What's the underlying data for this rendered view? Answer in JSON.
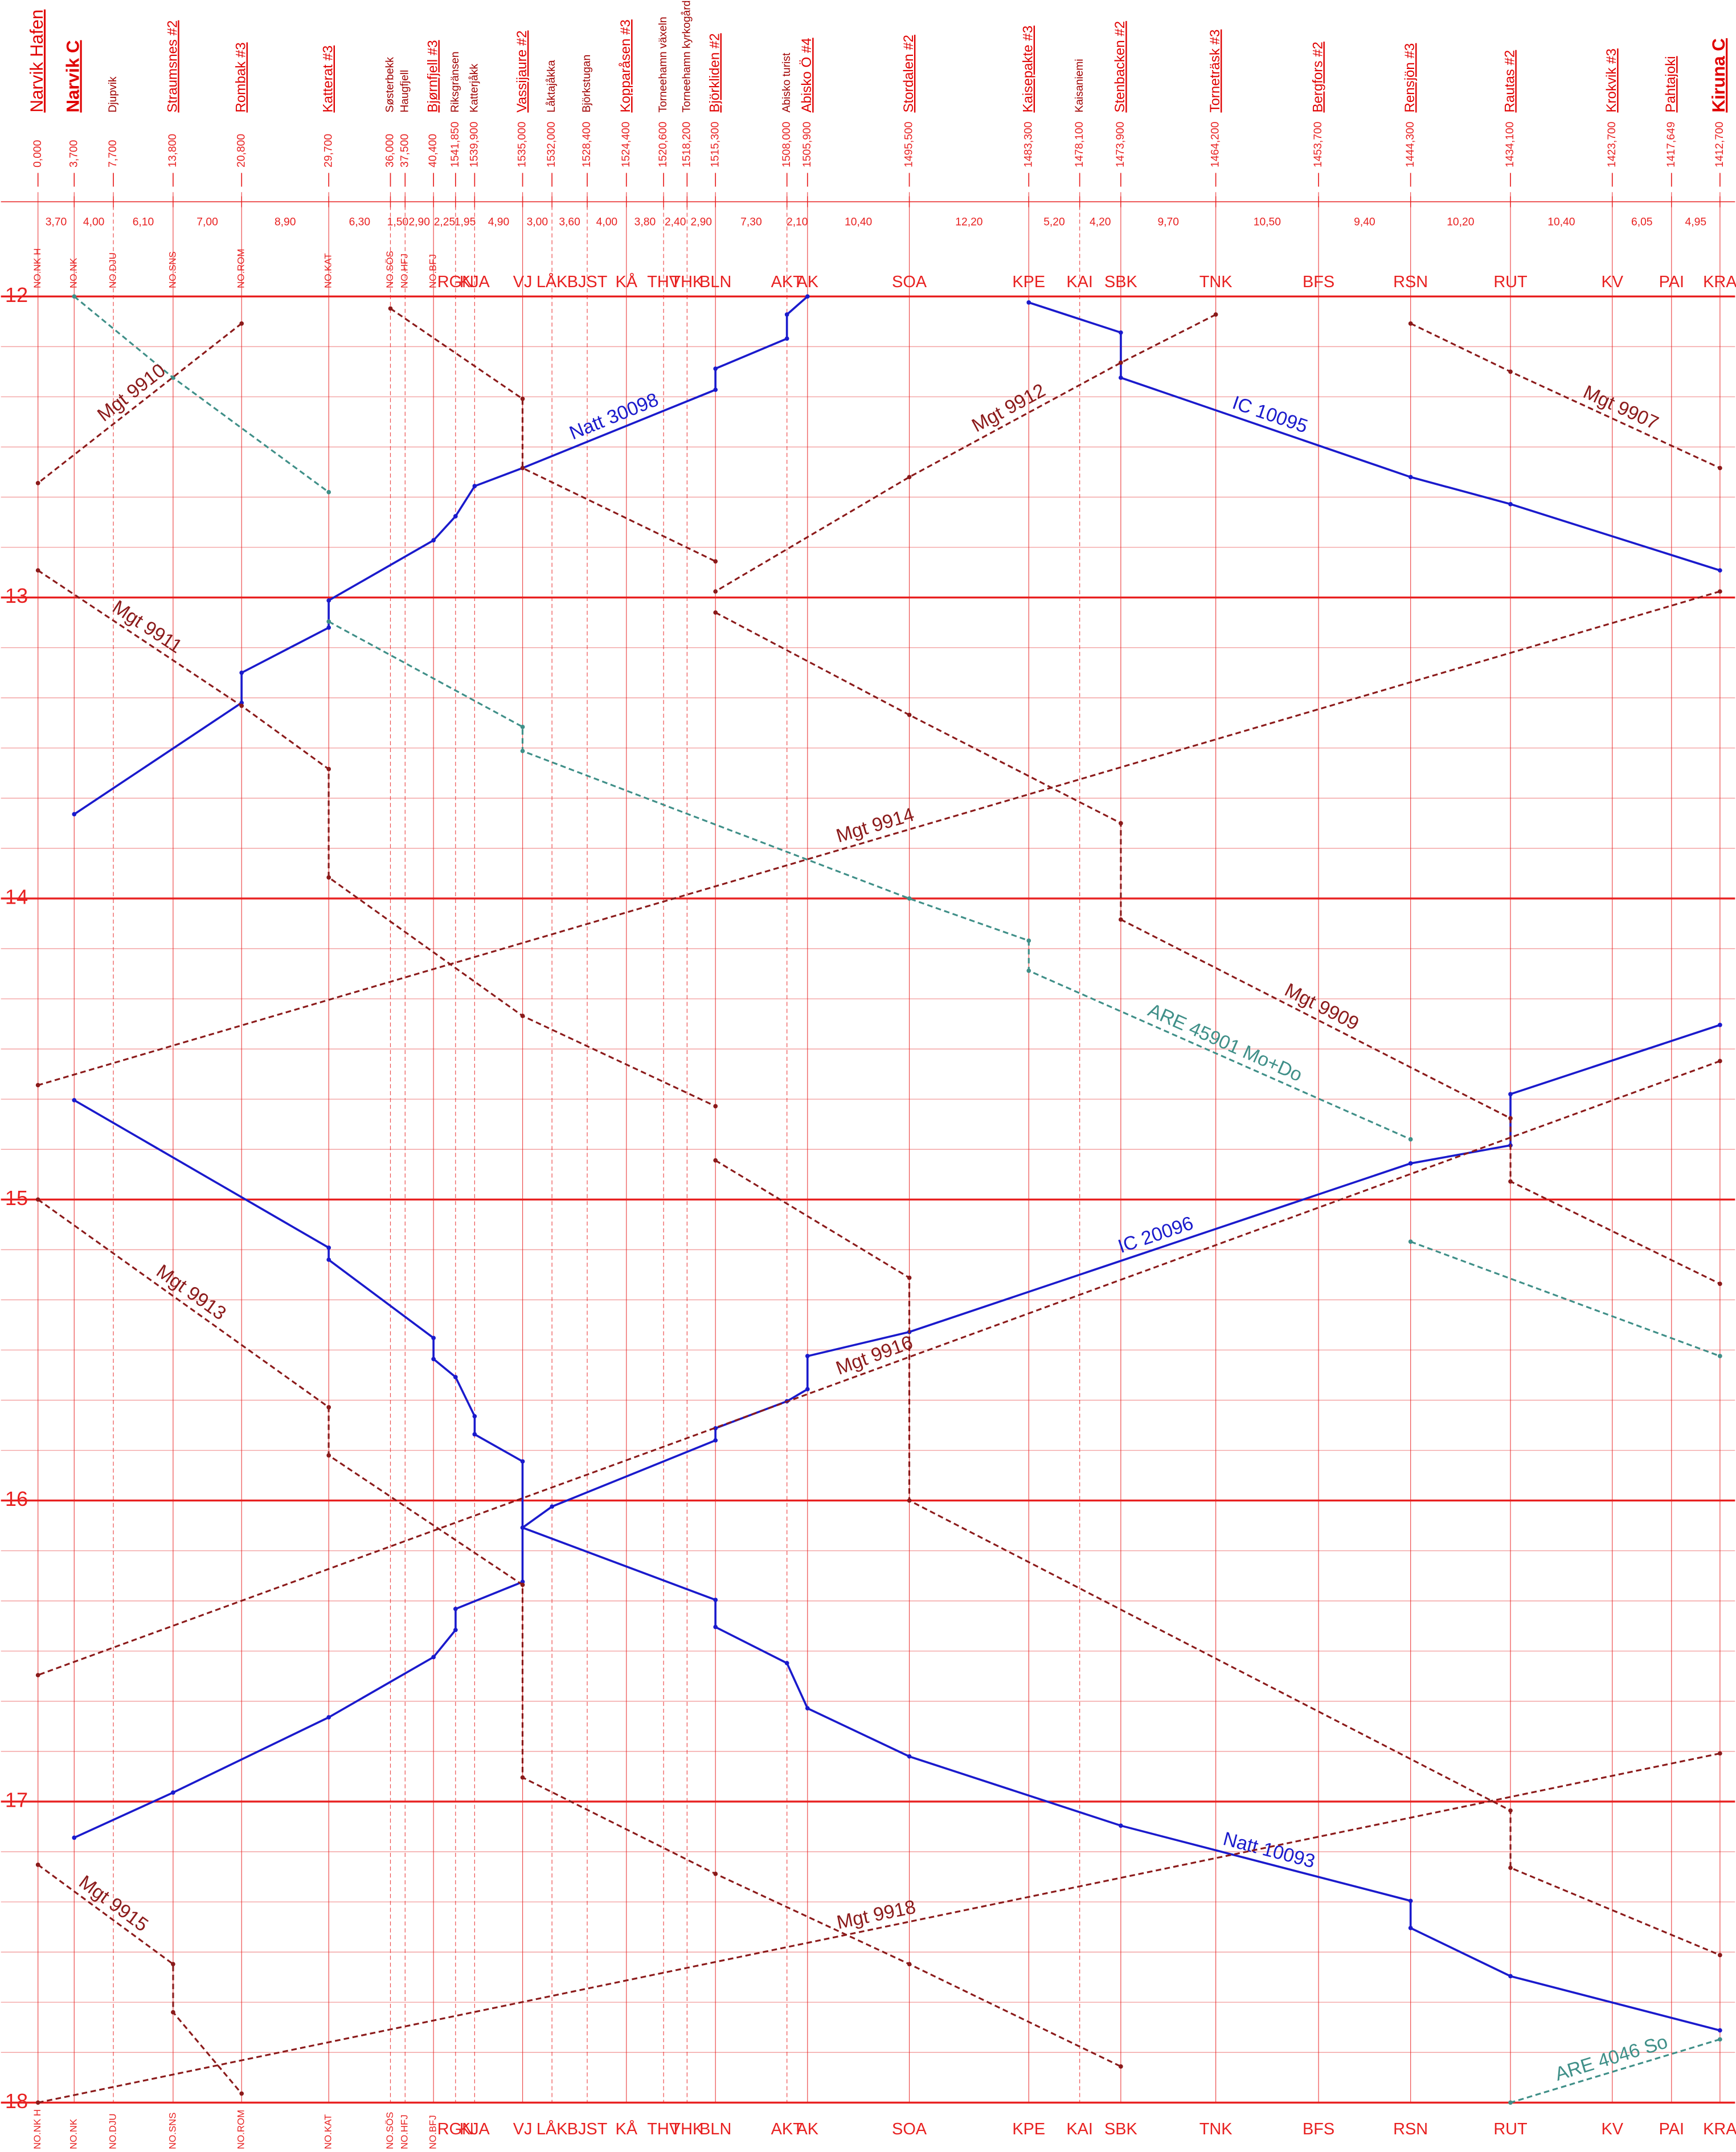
{
  "chart_data": {
    "type": "train-graph",
    "ylim": [
      12,
      18
    ],
    "yticks": [
      12,
      13,
      14,
      15,
      16,
      17,
      18
    ],
    "grid_color": "#e82020",
    "stations": [
      {
        "name": "Narvik Hafen",
        "km": {
          "value": 0,
          "label": "0,000"
        },
        "code": "NO.NK H",
        "major": true
      },
      {
        "name": "Narvik C",
        "km": {
          "value": 3.7,
          "label": "3,700"
        },
        "code": "NO.NK",
        "major": true
      },
      {
        "name": "Djupvik",
        "km": {
          "value": 7.7,
          "label": "7,700"
        },
        "code": "NO.DJU",
        "major": false
      },
      {
        "name": "Straumsnes #2",
        "km": {
          "value": 13.8,
          "label": "13,800"
        },
        "code": "NO.SNS",
        "major": true
      },
      {
        "name": "Rombak #3",
        "km": {
          "value": 20.8,
          "label": "20,800"
        },
        "code": "NO.ROM",
        "major": true
      },
      {
        "name": "Katterat #3",
        "km": {
          "value": 29.7,
          "label": "29,700"
        },
        "code": "NO.KAT",
        "major": true
      },
      {
        "name": "Søsterbekk",
        "km": {
          "value": 36.0,
          "label": "36,000"
        },
        "code": "NO.SÖS",
        "major": false
      },
      {
        "name": "Haugfjell",
        "km": {
          "value": 37.5,
          "label": "37,500"
        },
        "code": "NO.HFJ",
        "major": false
      },
      {
        "name": "Bjørnfjell #3",
        "km": {
          "value": 40.4,
          "label": "40,400"
        },
        "code": "NO.BFJ",
        "major": true
      },
      {
        "name": "Riksgränsen",
        "km": {
          "value": 1541.85,
          "label": "1541,850"
        },
        "code": "RGN",
        "major": false
      },
      {
        "name": "Katterjåkk",
        "km": {
          "value": 1539.9,
          "label": "1539,900"
        },
        "code": "KJA",
        "major": false
      },
      {
        "name": "Vassijaure #2",
        "km": {
          "value": 1535.0,
          "label": "1535,000"
        },
        "code": "VJ",
        "major": true
      },
      {
        "name": "Låktajåkka",
        "km": {
          "value": 1532.0,
          "label": "1532,000"
        },
        "code": "LÅK",
        "major": false
      },
      {
        "name": "Björkstugan",
        "km": {
          "value": 1528.4,
          "label": "1528,400"
        },
        "code": "BJST",
        "major": false
      },
      {
        "name": "Kopparåsen #3",
        "km": {
          "value": 1524.4,
          "label": "1524,400"
        },
        "code": "KÅ",
        "major": true
      },
      {
        "name": "Torneehamn växeln",
        "km": {
          "value": 1520.6,
          "label": "1520,600"
        },
        "code": "THV",
        "major": false
      },
      {
        "name": "Torneehamn kyrkogård",
        "km": {
          "value": 1518.2,
          "label": "1518,200"
        },
        "code": "THK",
        "major": false
      },
      {
        "name": "Björkliden #2",
        "km": {
          "value": 1515.3,
          "label": "1515,300"
        },
        "code": "BLN",
        "major": true
      },
      {
        "name": "Abisko turist",
        "km": {
          "value": 1508.0,
          "label": "1508,000"
        },
        "code": "AKT",
        "major": false
      },
      {
        "name": "Abisko Ö #4",
        "km": {
          "value": 1505.9,
          "label": "1505,900"
        },
        "code": "AK",
        "major": true
      },
      {
        "name": "Stordalen #2",
        "km": {
          "value": 1495.5,
          "label": "1495,500"
        },
        "code": "SOA",
        "major": true
      },
      {
        "name": "Kaisepakte #3",
        "km": {
          "value": 1483.3,
          "label": "1483,300"
        },
        "code": "KPE",
        "major": true
      },
      {
        "name": "Kaisaniemi",
        "km": {
          "value": 1478.1,
          "label": "1478,100"
        },
        "code": "KAI",
        "major": false
      },
      {
        "name": "Stenbacken #2",
        "km": {
          "value": 1473.9,
          "label": "1473,900"
        },
        "code": "SBK",
        "major": true
      },
      {
        "name": "Torneträsk #3",
        "km": {
          "value": 1464.2,
          "label": "1464,200"
        },
        "code": "TNK",
        "major": true
      },
      {
        "name": "Bergfors #2",
        "km": {
          "value": 1453.7,
          "label": "1453,700"
        },
        "code": "BFS",
        "major": true
      },
      {
        "name": "Rensjön #3",
        "km": {
          "value": 1444.3,
          "label": "1444,300"
        },
        "code": "RSN",
        "major": true
      },
      {
        "name": "Rautas #2",
        "km": {
          "value": 1434.1,
          "label": "1434,100"
        },
        "code": "RUT",
        "major": true
      },
      {
        "name": "Krokvik #3",
        "km": {
          "value": 1423.7,
          "label": "1423,700"
        },
        "code": "KV",
        "major": true
      },
      {
        "name": "Pahtajoki",
        "km": {
          "value": 1417.649,
          "label": "1417,649"
        },
        "code": "PAI",
        "major": true
      },
      {
        "name": "Kiruna C",
        "km": {
          "value": 1412.7,
          "label": "1412,700"
        },
        "code": "KRA",
        "major": true
      }
    ],
    "segments": [
      {
        "value": 3.7,
        "label": "3,70"
      },
      {
        "value": 4.0,
        "label": "4,00"
      },
      {
        "value": 6.1,
        "label": "6,10"
      },
      {
        "value": 7.0,
        "label": "7,00"
      },
      {
        "value": 8.9,
        "label": "8,90"
      },
      {
        "value": 6.3,
        "label": "6,30"
      },
      {
        "value": 1.5,
        "label": "1,50"
      },
      {
        "value": 2.9,
        "label": "2,90"
      },
      {
        "value": 2.25,
        "label": "2,25"
      },
      {
        "value": 1.95,
        "label": "1,95"
      },
      {
        "value": 4.9,
        "label": "4,90"
      },
      {
        "value": 3.0,
        "label": "3,00"
      },
      {
        "value": 3.6,
        "label": "3,60"
      },
      {
        "value": 4.0,
        "label": "4,00"
      },
      {
        "value": 3.8,
        "label": "3,80"
      },
      {
        "value": 2.4,
        "label": "2,40"
      },
      {
        "value": 2.9,
        "label": "2,90"
      },
      {
        "value": 7.3,
        "label": "7,30"
      },
      {
        "value": 2.1,
        "label": "2,10"
      },
      {
        "value": 10.4,
        "label": "10,40"
      },
      {
        "value": 12.2,
        "label": "12,20"
      },
      {
        "value": 5.2,
        "label": "5,20"
      },
      {
        "value": 4.2,
        "label": "4,20"
      },
      {
        "value": 9.7,
        "label": "9,70"
      },
      {
        "value": 10.5,
        "label": "10,50"
      },
      {
        "value": 9.4,
        "label": "9,40"
      },
      {
        "value": 10.2,
        "label": "10,20"
      },
      {
        "value": 10.4,
        "label": "10,40"
      },
      {
        "value": 6.05,
        "label": "6,05"
      },
      {
        "value": 4.95,
        "label": "4,95"
      }
    ],
    "trains": [
      {
        "name": "Natt 30098",
        "color": "#1a1acc",
        "dashed": false,
        "points": [
          [
            19,
            12.0
          ],
          [
            18,
            12.06
          ],
          [
            18,
            12.14
          ],
          [
            17,
            12.24
          ],
          [
            17,
            12.31
          ],
          [
            11,
            12.57
          ],
          [
            10,
            12.63
          ],
          [
            9,
            12.73
          ],
          [
            8,
            12.81
          ],
          [
            5,
            13.01
          ],
          [
            5,
            13.1
          ],
          [
            4,
            13.25
          ],
          [
            4,
            13.35
          ],
          [
            1,
            13.72
          ]
        ]
      },
      {
        "name": "IC 10095",
        "color": "#1a1acc",
        "dashed": false,
        "points": [
          [
            21,
            12.02
          ],
          [
            23,
            12.12
          ],
          [
            23,
            12.27
          ],
          [
            26,
            12.6
          ],
          [
            27,
            12.69
          ],
          [
            30,
            12.91
          ]
        ]
      },
      {
        "name": "ARE 45901 Mo+Do",
        "color": "#3f8f88",
        "dashed": true,
        "points": [
          [
            1,
            12.0
          ],
          [
            3,
            12.27
          ],
          [
            5,
            12.65
          ],
          null,
          [
            5,
            13.08
          ],
          [
            11,
            13.43
          ],
          [
            11,
            13.51
          ],
          [
            20,
            14.0
          ],
          [
            21,
            14.14
          ],
          [
            21,
            14.24
          ],
          [
            26,
            14.8
          ],
          null,
          [
            26,
            15.14
          ],
          [
            30,
            15.52
          ]
        ]
      },
      {
        "name": "IC 20096",
        "color": "#1a1acc",
        "dashed": false,
        "points": [
          [
            30,
            14.42
          ],
          [
            27,
            14.65
          ],
          [
            27,
            14.82
          ],
          [
            26,
            14.88
          ],
          [
            20,
            15.44
          ],
          [
            19,
            15.52
          ],
          [
            19,
            15.63
          ],
          [
            18,
            15.67
          ],
          [
            17,
            15.76
          ],
          [
            17,
            15.8
          ],
          [
            12,
            16.02
          ],
          [
            11,
            16.09
          ],
          [
            11,
            16.27
          ],
          [
            9,
            16.36
          ],
          [
            9,
            16.43
          ],
          [
            8,
            16.52
          ],
          [
            5,
            16.72
          ],
          [
            3,
            16.97
          ],
          [
            1,
            17.12
          ]
        ]
      },
      {
        "name": "Natt 10093",
        "color": "#1a1acc",
        "dashed": false,
        "points": [
          [
            1,
            14.67
          ],
          [
            5,
            15.16
          ],
          [
            5,
            15.2
          ],
          [
            8,
            15.46
          ],
          [
            8,
            15.53
          ],
          [
            9,
            15.59
          ],
          [
            10,
            15.72
          ],
          [
            10,
            15.78
          ],
          [
            11,
            15.87
          ],
          [
            11,
            16.09
          ],
          [
            17,
            16.33
          ],
          [
            17,
            16.42
          ],
          [
            18,
            16.54
          ],
          [
            19,
            16.69
          ],
          [
            20,
            16.85
          ],
          [
            23,
            17.08
          ],
          [
            26,
            17.33
          ],
          [
            26,
            17.42
          ],
          [
            27,
            17.58
          ],
          [
            30,
            17.76
          ]
        ]
      },
      {
        "name": "Mgt 9907",
        "color": "#8b1a1a",
        "dashed": true,
        "points": [
          [
            26,
            12.09
          ],
          [
            27,
            12.25
          ],
          [
            30,
            12.57
          ]
        ]
      },
      {
        "name": "Mgt 9910",
        "color": "#8b1a1a",
        "dashed": true,
        "points": [
          [
            4,
            12.09
          ],
          [
            0,
            12.62
          ]
        ]
      },
      {
        "name": "Mgt 9912",
        "color": "#8b1a1a",
        "dashed": true,
        "points": [
          [
            24,
            12.06
          ],
          [
            23,
            12.22
          ],
          [
            20,
            12.6
          ],
          [
            17,
            12.98
          ]
        ]
      },
      {
        "color": "#8b1a1a",
        "dashed": true,
        "points": [
          [
            6,
            12.04
          ],
          [
            11,
            12.34
          ],
          [
            11,
            12.57
          ],
          [
            17,
            12.88
          ]
        ]
      },
      {
        "name": "Mgt 9909",
        "color": "#8b1a1a",
        "dashed": true,
        "points": [
          [
            17,
            13.05
          ],
          [
            20,
            13.39
          ],
          [
            23,
            13.75
          ],
          [
            23,
            14.07
          ],
          [
            27,
            14.73
          ],
          [
            27,
            14.94
          ],
          [
            30,
            15.28
          ]
        ]
      },
      {
        "name": "Mgt 9914",
        "color": "#8b1a1a",
        "dashed": true,
        "points": [
          [
            30,
            12.98
          ],
          [
            0,
            14.62
          ]
        ]
      },
      {
        "name": "Mgt 9911",
        "color": "#8b1a1a",
        "dashed": true,
        "points": [
          [
            0,
            12.91
          ],
          [
            4,
            13.36
          ],
          [
            5,
            13.57
          ],
          [
            5,
            13.93
          ],
          [
            11,
            14.39
          ],
          [
            17,
            14.69
          ]
        ]
      },
      {
        "name": "Mgt 9916",
        "color": "#8b1a1a",
        "dashed": true,
        "points": [
          [
            30,
            14.54
          ],
          [
            0,
            16.58
          ]
        ]
      },
      {
        "color": "#8b1a1a",
        "dashed": true,
        "points": [
          [
            17,
            14.87
          ],
          [
            20,
            15.26
          ],
          [
            20,
            16.0
          ],
          [
            27,
            17.03
          ],
          [
            27,
            17.22
          ],
          [
            30,
            17.51
          ]
        ]
      },
      {
        "name": "Mgt 9913",
        "color": "#8b1a1a",
        "dashed": true,
        "points": [
          [
            0,
            15.0
          ],
          [
            5,
            15.69
          ],
          [
            5,
            15.85
          ],
          [
            11,
            16.28
          ],
          [
            11,
            16.92
          ],
          [
            17,
            17.24
          ],
          [
            20,
            17.54
          ],
          [
            23,
            17.88
          ]
        ]
      },
      {
        "name": "Mgt 9915",
        "color": "#8b1a1a",
        "dashed": true,
        "points": [
          [
            0,
            17.21
          ],
          [
            3,
            17.54
          ],
          [
            3,
            17.7
          ],
          [
            4,
            17.97
          ]
        ]
      },
      {
        "name": "Mgt 9918",
        "color": "#8b1a1a",
        "dashed": true,
        "points": [
          [
            30,
            16.84
          ],
          [
            0,
            18.0
          ]
        ]
      },
      {
        "name": "ARE 4046 So",
        "color": "#3f8f88",
        "dashed": true,
        "points": [
          [
            30,
            17.79
          ],
          [
            27,
            18.0
          ]
        ]
      }
    ]
  }
}
